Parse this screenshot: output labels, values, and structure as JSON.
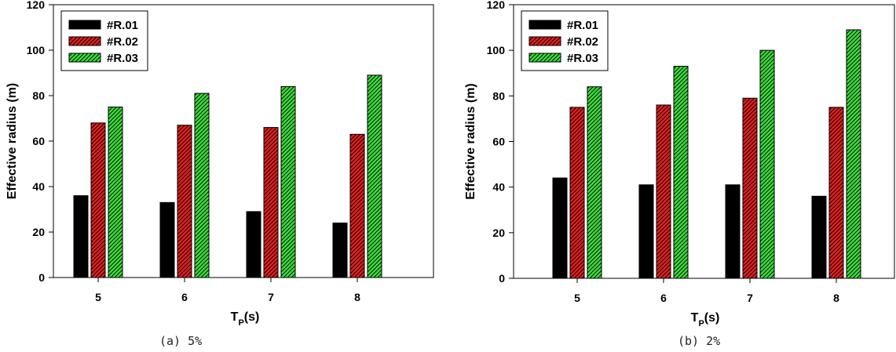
{
  "chart_data": [
    {
      "type": "bar",
      "caption": "(a) 5%",
      "categories": [
        "5",
        "6",
        "7",
        "8"
      ],
      "series": [
        {
          "name": "#R.01",
          "values": [
            36,
            33,
            29,
            24
          ]
        },
        {
          "name": "#R.02",
          "values": [
            68,
            67,
            66,
            63
          ]
        },
        {
          "name": "#R.03",
          "values": [
            75,
            81,
            84,
            89
          ]
        }
      ],
      "xlabel": "T",
      "xlabel_sub": "P",
      "xlabel_suffix": "(s)",
      "ylabel": "Effective radius (m)",
      "ylim": [
        0,
        120
      ],
      "yticks": [
        0,
        20,
        40,
        60,
        80,
        100,
        120
      ],
      "grid": false,
      "legend_position": "top-left"
    },
    {
      "type": "bar",
      "caption": "(b) 2%",
      "categories": [
        "5",
        "6",
        "7",
        "8"
      ],
      "series": [
        {
          "name": "#R.01",
          "values": [
            44,
            41,
            41,
            36
          ]
        },
        {
          "name": "#R.02",
          "values": [
            75,
            76,
            79,
            75
          ]
        },
        {
          "name": "#R.03",
          "values": [
            84,
            93,
            100,
            109
          ]
        }
      ],
      "xlabel": "T",
      "xlabel_sub": "P",
      "xlabel_suffix": "(s)",
      "ylabel": "Effective radius (m)",
      "ylim": [
        0,
        120
      ],
      "yticks": [
        0,
        20,
        40,
        60,
        80,
        100,
        120
      ],
      "grid": false,
      "legend_position": "top-left"
    }
  ],
  "series_styles": [
    {
      "fill": "#000000",
      "hatch": false
    },
    {
      "fill": "#e02020",
      "hatch": true
    },
    {
      "fill": "#3ddc3d",
      "hatch": true
    }
  ]
}
